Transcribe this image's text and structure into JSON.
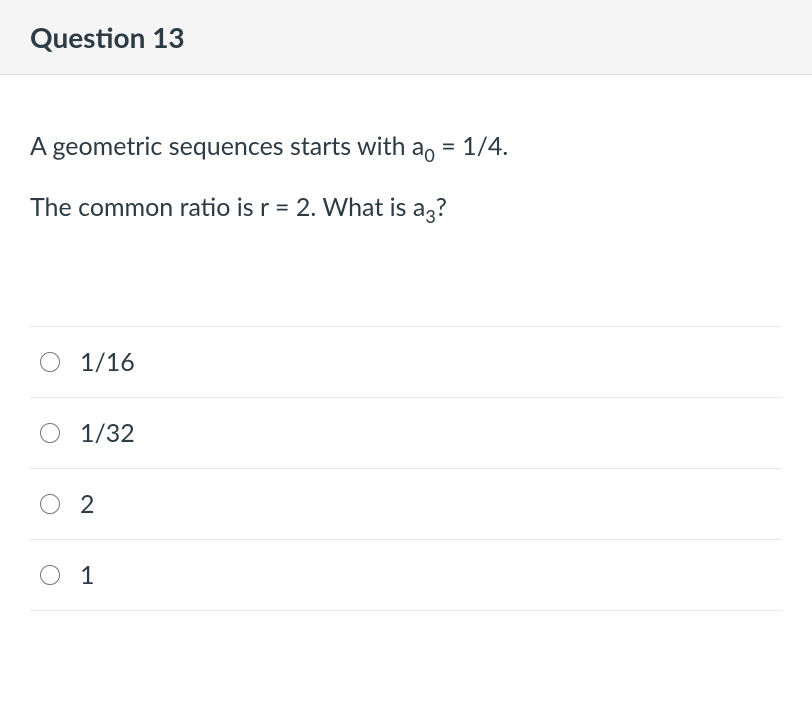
{
  "header": {
    "title": "Question 13"
  },
  "question": {
    "line1_prefix": "A geometric sequences starts with a",
    "line1_sub": "0",
    "line1_suffix": " = 1/4.",
    "line2_prefix": "The common ratio is r = 2. What is a",
    "line2_sub": "3",
    "line2_suffix": "?"
  },
  "answers": [
    {
      "label": "1/16"
    },
    {
      "label": "1/32"
    },
    {
      "label": "2"
    },
    {
      "label": "1"
    }
  ],
  "styles": {
    "header_bg": "#f5f5f5",
    "border_color": "#e8e8e8",
    "text_color": "#2d3b45",
    "body_bg": "#ffffff",
    "title_fontsize": 28,
    "body_fontsize": 25
  }
}
